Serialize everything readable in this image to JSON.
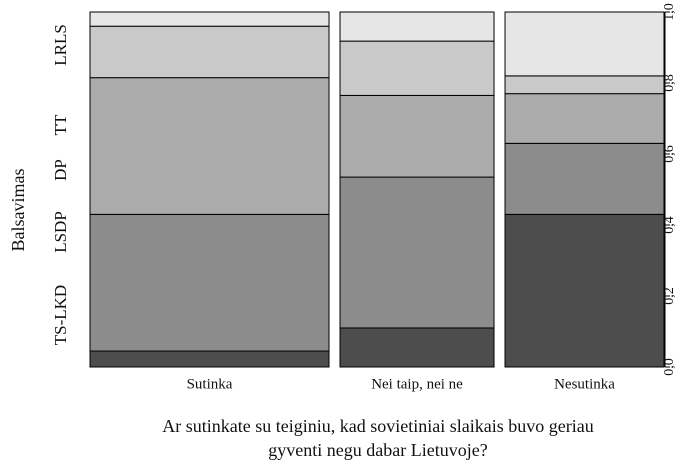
{
  "chart_data": {
    "type": "mosaic",
    "ylabel": "Balsavimas",
    "xlabel_lines": [
      "Ar sutinkate su teiginiu, kad sovietiniai slaikais buvo geriau",
      "gyventi negu dabar Lietuvoje?"
    ],
    "categories": [
      "Sutinka",
      "Nei taip, nei ne",
      "Nesutinka"
    ],
    "widths": [
      0.433,
      0.279,
      0.288
    ],
    "series": [
      {
        "name": "TS-LKD",
        "color": "#4d4d4d",
        "values": [
          0.045,
          0.11,
          0.43
        ]
      },
      {
        "name": "LSDP",
        "color": "#8c8c8c",
        "values": [
          0.385,
          0.425,
          0.2
        ]
      },
      {
        "name": "DP",
        "color": "#ababab",
        "values": [
          0.385,
          0.23,
          0.14
        ]
      },
      {
        "name": "TT",
        "color": "#c9c9c9",
        "values": [
          0.145,
          0.153,
          0.05
        ]
      },
      {
        "name": "LRLS",
        "color": "#e6e6e6",
        "values": [
          0.04,
          0.082,
          0.18
        ]
      }
    ],
    "ylim": [
      0,
      1
    ],
    "yticks": [
      {
        "value": 0,
        "label": "0,0"
      },
      {
        "value": 0.2,
        "label": "0,2"
      },
      {
        "value": 0.4,
        "label": "0,4"
      },
      {
        "value": 0.6,
        "label": "0,6"
      },
      {
        "value": 0.8,
        "label": "0,8"
      },
      {
        "value": 1,
        "label": "1,0"
      }
    ]
  }
}
